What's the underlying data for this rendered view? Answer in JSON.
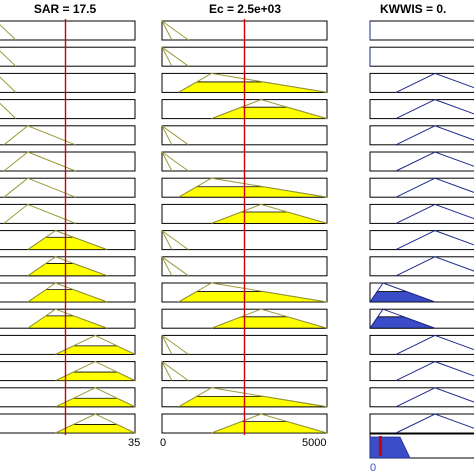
{
  "headers": {
    "sar": "SAR = 17.5",
    "ec": "Ec = 2.5e+03",
    "kwwis": "KWWIS = 0."
  },
  "axis_labels": {
    "sar_max": "35",
    "ec_min": "0",
    "ec_max": "5000",
    "kwwis_min": "0"
  },
  "colors": {
    "frame": "#000000",
    "input_line": "#9b9b3a",
    "input_fill": "#ffff00",
    "output_line": "#1f2d8c",
    "output_fill": "#3b4cc8",
    "indicator": "#cc0000"
  },
  "inputs": {
    "sar": {
      "min": 0,
      "max": 35,
      "value": 17.5
    },
    "ec": {
      "min": 0,
      "max": 5000,
      "value": 2500
    }
  },
  "rules": [
    {
      "sar": [
        -2,
        0,
        5,
        0.0
      ],
      "ec": [
        300,
        0,
        800,
        0.0
      ],
      "out": [
        0,
        0,
        0,
        0.0
      ]
    },
    {
      "sar": [
        -2,
        0,
        5,
        0.0
      ],
      "ec": [
        300,
        0,
        800,
        0.0
      ],
      "out": [
        0,
        0,
        0,
        0.0
      ]
    },
    {
      "sar": [
        -2,
        0,
        5,
        0.0
      ],
      "ec": [
        500,
        1500,
        5000,
        0.55
      ],
      "out": [
        0.2,
        0.5,
        0.9,
        0.0
      ]
    },
    {
      "sar": [
        -2,
        0,
        5,
        0.0
      ],
      "ec": [
        1500,
        3000,
        5000,
        0.6
      ],
      "out": [
        0.2,
        0.5,
        0.9,
        0.0
      ]
    },
    {
      "sar": [
        2,
        8,
        20,
        0.0
      ],
      "ec": [
        300,
        0,
        800,
        0.0
      ],
      "out": [
        0.2,
        0.5,
        0.9,
        0.0
      ]
    },
    {
      "sar": [
        2,
        8,
        20,
        0.0
      ],
      "ec": [
        300,
        0,
        800,
        0.0
      ],
      "out": [
        0.2,
        0.5,
        0.9,
        0.0
      ]
    },
    {
      "sar": [
        2,
        8,
        20,
        0.0
      ],
      "ec": [
        500,
        1500,
        5000,
        0.55
      ],
      "out": [
        0.2,
        0.5,
        0.9,
        0.0
      ]
    },
    {
      "sar": [
        2,
        8,
        20,
        0.0
      ],
      "ec": [
        1500,
        3000,
        5000,
        0.6
      ],
      "out": [
        0.2,
        0.5,
        0.9,
        0.0
      ]
    },
    {
      "sar": [
        8,
        15,
        28,
        0.65
      ],
      "ec": [
        300,
        0,
        800,
        0.0
      ],
      "out": [
        0.2,
        0.5,
        0.9,
        0.0
      ]
    },
    {
      "sar": [
        8,
        15,
        28,
        0.65
      ],
      "ec": [
        300,
        0,
        800,
        0.0
      ],
      "out": [
        0.2,
        0.5,
        0.9,
        0.0
      ]
    },
    {
      "sar": [
        8,
        15,
        28,
        0.65
      ],
      "ec": [
        500,
        1500,
        5000,
        0.55
      ],
      "out": [
        0.0,
        0.1,
        0.5,
        0.55
      ]
    },
    {
      "sar": [
        8,
        15,
        28,
        0.65
      ],
      "ec": [
        1500,
        3000,
        5000,
        0.6
      ],
      "out": [
        0.0,
        0.1,
        0.5,
        0.6
      ]
    },
    {
      "sar": [
        15,
        25,
        35,
        0.45
      ],
      "ec": [
        300,
        0,
        800,
        0.0
      ],
      "out": [
        0.2,
        0.5,
        0.9,
        0.0
      ]
    },
    {
      "sar": [
        15,
        25,
        35,
        0.45
      ],
      "ec": [
        300,
        0,
        800,
        0.0
      ],
      "out": [
        0.2,
        0.5,
        0.9,
        0.0
      ]
    },
    {
      "sar": [
        15,
        25,
        35,
        0.45
      ],
      "ec": [
        500,
        1500,
        5000,
        0.55
      ],
      "out": [
        0.2,
        0.5,
        0.9,
        0.0
      ]
    },
    {
      "sar": [
        15,
        25,
        35,
        0.45
      ],
      "ec": [
        1500,
        3000,
        5000,
        0.6
      ],
      "out": [
        0.2,
        0.5,
        0.9,
        0.0
      ]
    }
  ],
  "aggregate": {
    "out_value": 0.08
  }
}
